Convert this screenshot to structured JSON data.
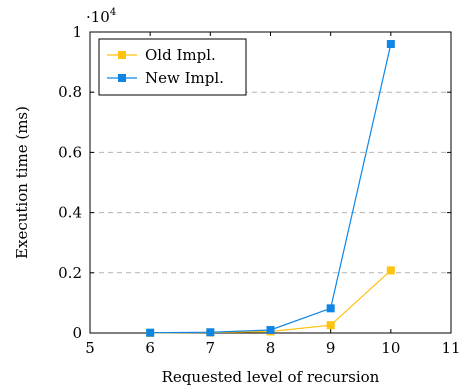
{
  "chart_data": {
    "type": "line",
    "title": "",
    "xlabel": "Requested level of recursion",
    "ylabel": "Execution time (ms)",
    "xlim": [
      5,
      11
    ],
    "ylim": [
      0,
      10000
    ],
    "x_ticks": [
      5,
      6,
      7,
      8,
      9,
      10,
      11
    ],
    "y_ticks": [
      0,
      2000,
      4000,
      6000,
      8000,
      10000
    ],
    "y_tick_labels": [
      "0",
      "0.2",
      "0.4",
      "0.6",
      "0.8",
      "1"
    ],
    "y_scale_label": "·10",
    "y_scale_exponent": "4",
    "grid": "horizontal-dashed",
    "legend_position": "top-left",
    "series": [
      {
        "name": "Old Impl.",
        "color": "#ffc20e",
        "marker": "square",
        "x": [
          6,
          7,
          8,
          9,
          10
        ],
        "values": [
          5,
          15,
          50,
          260,
          2080
        ]
      },
      {
        "name": "New Impl.",
        "color": "#0f86e6",
        "marker": "square",
        "x": [
          6,
          7,
          8,
          9,
          10
        ],
        "values": [
          10,
          25,
          100,
          820,
          9600
        ]
      }
    ]
  }
}
